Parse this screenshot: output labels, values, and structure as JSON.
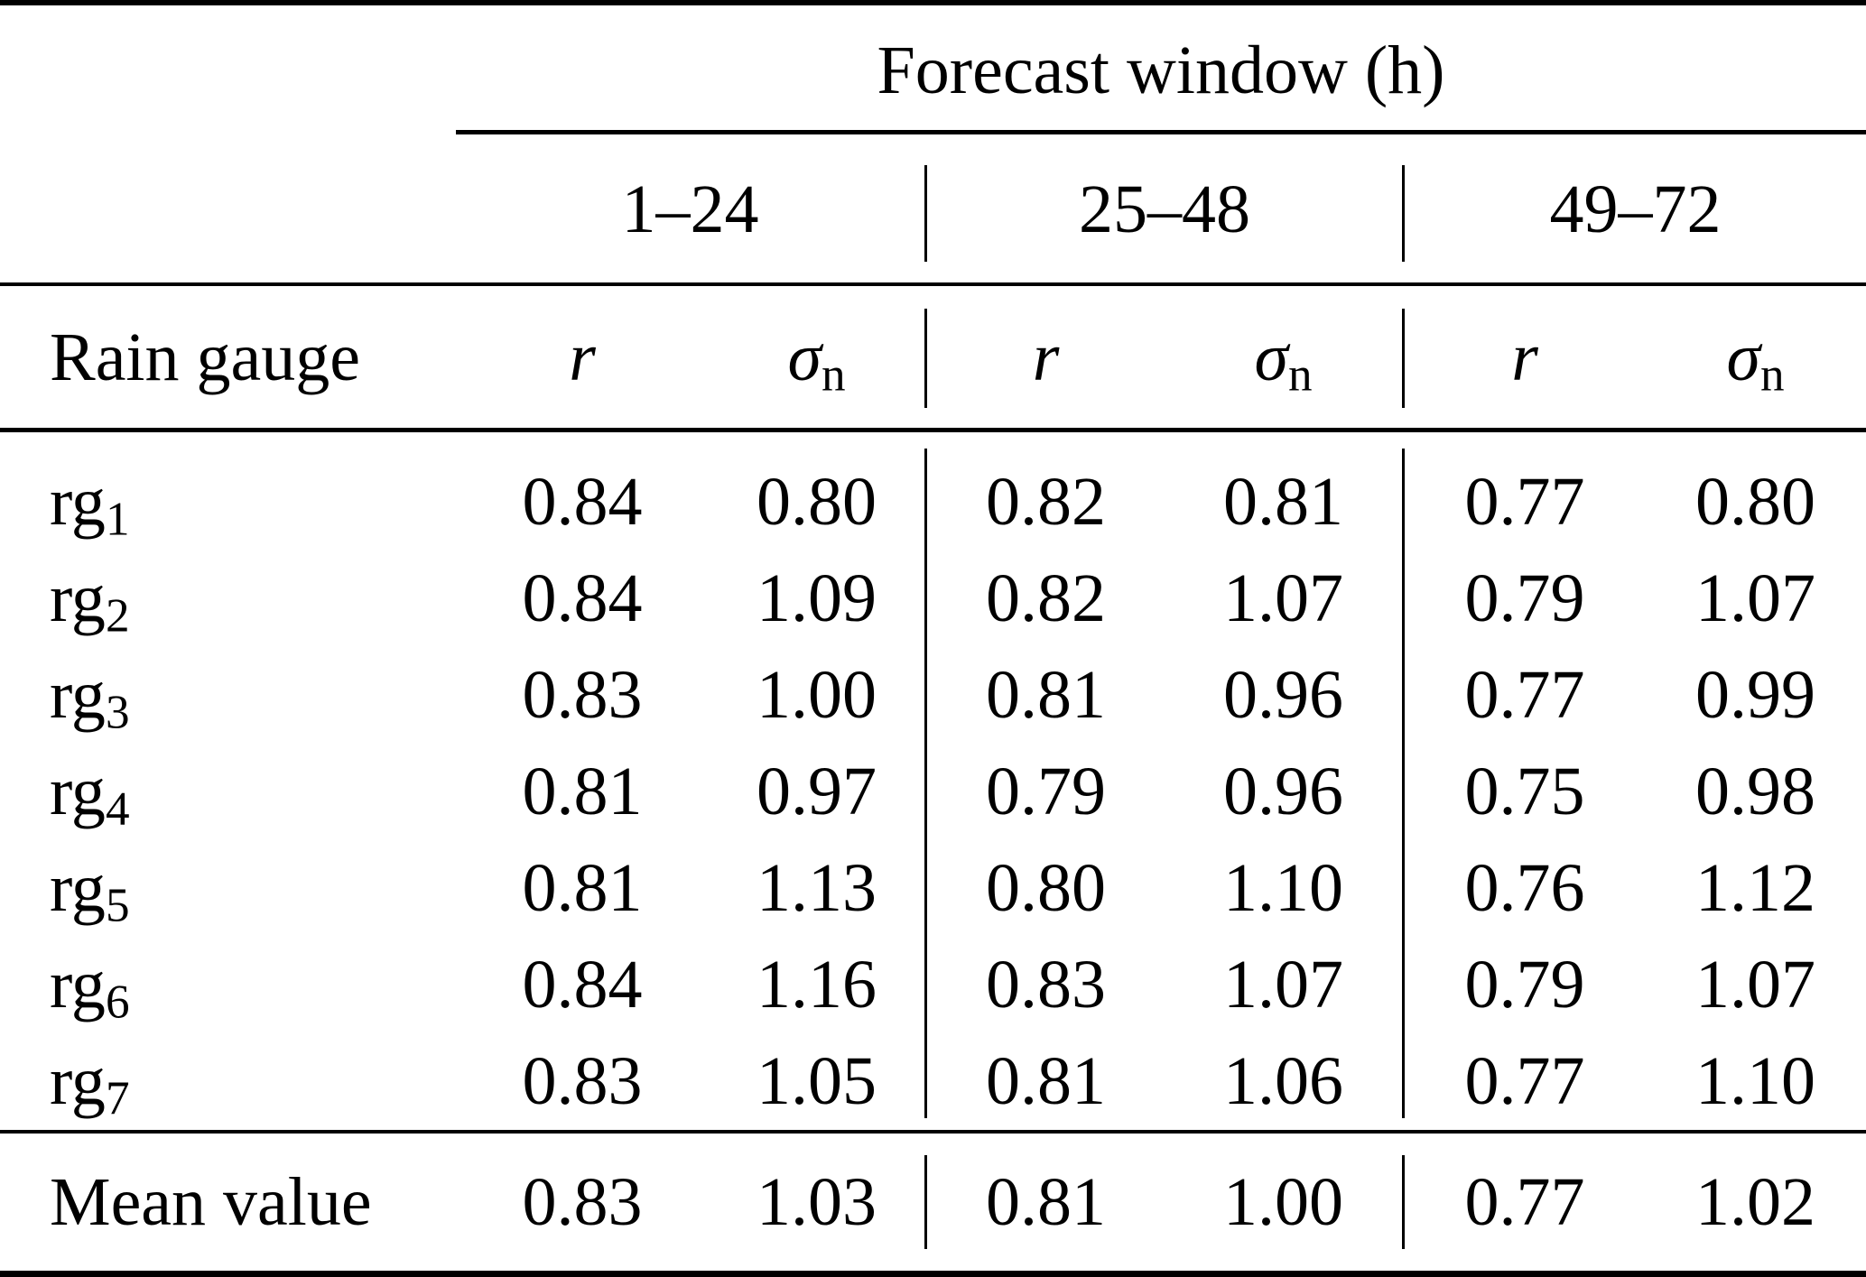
{
  "table": {
    "title": "Forecast window (h)",
    "row_header_label": "Rain gauge",
    "windows": [
      "1–24",
      "25–48",
      "49–72"
    ],
    "metric_r": "r",
    "metric_sigma": "σ",
    "metric_sigma_sub": "n",
    "rows": [
      {
        "gauge_base": "rg",
        "gauge_sub": "1",
        "values": [
          "0.84",
          "0.80",
          "0.82",
          "0.81",
          "0.77",
          "0.80"
        ]
      },
      {
        "gauge_base": "rg",
        "gauge_sub": "2",
        "values": [
          "0.84",
          "1.09",
          "0.82",
          "1.07",
          "0.79",
          "1.07"
        ]
      },
      {
        "gauge_base": "rg",
        "gauge_sub": "3",
        "values": [
          "0.83",
          "1.00",
          "0.81",
          "0.96",
          "0.77",
          "0.99"
        ]
      },
      {
        "gauge_base": "rg",
        "gauge_sub": "4",
        "values": [
          "0.81",
          "0.97",
          "0.79",
          "0.96",
          "0.75",
          "0.98"
        ]
      },
      {
        "gauge_base": "rg",
        "gauge_sub": "5",
        "values": [
          "0.81",
          "1.13",
          "0.80",
          "1.10",
          "0.76",
          "1.12"
        ]
      },
      {
        "gauge_base": "rg",
        "gauge_sub": "6",
        "values": [
          "0.84",
          "1.16",
          "0.83",
          "1.07",
          "0.79",
          "1.07"
        ]
      },
      {
        "gauge_base": "rg",
        "gauge_sub": "7",
        "values": [
          "0.83",
          "1.05",
          "0.81",
          "1.06",
          "0.77",
          "1.10"
        ]
      }
    ],
    "mean_row": {
      "label": "Mean value",
      "values": [
        "0.83",
        "1.03",
        "0.81",
        "1.00",
        "0.77",
        "1.02"
      ]
    },
    "colors": {
      "text": "#000000",
      "background": "#ffffff",
      "rule": "#000000"
    }
  }
}
